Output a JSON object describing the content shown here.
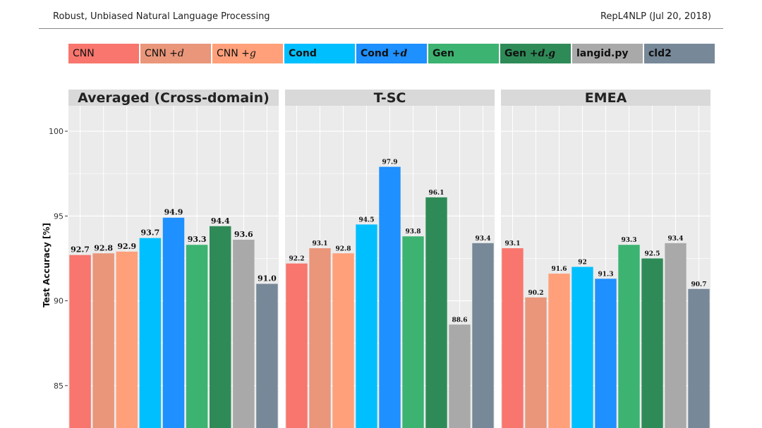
{
  "header": {
    "left": "Robust, Unbiased Natural Language Processing",
    "right": "RepL4NLP (Jul 20, 2018)"
  },
  "legend": [
    {
      "label": "CNN",
      "base": "CNN",
      "mod": "",
      "bold": false,
      "color": "#F8766D"
    },
    {
      "label": "CNN +d",
      "base": "CNN +",
      "mod": "d",
      "bold": false,
      "color": "#E9967A"
    },
    {
      "label": "CNN +g",
      "base": "CNN +",
      "mod": "g",
      "bold": false,
      "color": "#FFA07A"
    },
    {
      "label": "Cond",
      "base": "Cond",
      "mod": "",
      "bold": true,
      "color": "#00BFFF"
    },
    {
      "label": "Cond +d",
      "base": "Cond +",
      "mod": "d",
      "bold": true,
      "color": "#1E90FF"
    },
    {
      "label": "Gen",
      "base": "Gen",
      "mod": "",
      "bold": true,
      "color": "#3CB371"
    },
    {
      "label": "Gen +d.g",
      "base": "Gen +",
      "mod": "d.g",
      "bold": true,
      "color": "#2E8B57"
    },
    {
      "label": "langid.py",
      "base": "langid.py",
      "mod": "",
      "bold": true,
      "color": "#A9A9A9"
    },
    {
      "label": "cld2",
      "base": "cld2",
      "mod": "",
      "bold": true,
      "color": "#778899"
    }
  ],
  "chart_data": {
    "type": "bar",
    "ylabel": "Test Accuracy [%]",
    "yticks": [
      85,
      90,
      95,
      100
    ],
    "ylim": [
      82.5,
      101.5
    ],
    "grid": true,
    "series_names": [
      "CNN",
      "CNN +d",
      "CNN +g",
      "Cond",
      "Cond +d",
      "Gen",
      "Gen +d.g",
      "langid.py",
      "cld2"
    ],
    "panels": [
      {
        "title": "Averaged (Cross-domain)",
        "values": [
          92.7,
          92.8,
          92.9,
          93.7,
          94.9,
          93.3,
          94.4,
          93.6,
          91.0
        ],
        "labels": [
          "92.7",
          "92.8",
          "92.9",
          "93.7",
          "94.9",
          "93.3",
          "94.4",
          "93.6",
          "91.0"
        ]
      },
      {
        "title": "T-SC",
        "values": [
          92.2,
          93.1,
          92.8,
          94.5,
          97.9,
          93.8,
          96.1,
          88.6,
          93.4
        ],
        "labels": [
          "92.2",
          "93.1",
          "92.8",
          "94.5",
          "97.9",
          "93.8",
          "96.1",
          "88.6",
          "93.4"
        ]
      },
      {
        "title": "EMEA",
        "values": [
          93.1,
          90.2,
          91.6,
          92.0,
          91.3,
          93.3,
          92.5,
          93.4,
          90.7
        ],
        "labels": [
          "93.1",
          "90.2",
          "91.6",
          "92",
          "91.3",
          "93.3",
          "92.5",
          "93.4",
          "90.7"
        ]
      }
    ]
  }
}
